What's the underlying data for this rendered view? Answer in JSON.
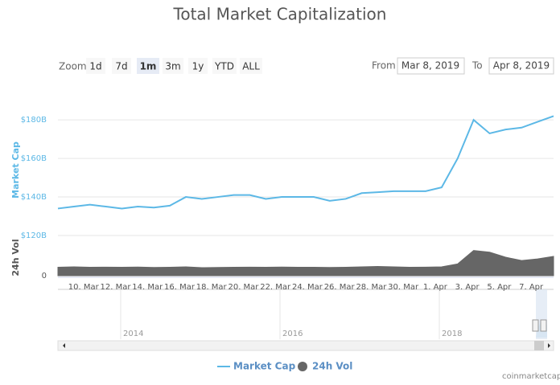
{
  "chart_data": [
    {
      "type": "line",
      "title": "Total Market Capitalization",
      "ylabel": "Market Cap",
      "series": [
        {
          "name": "Market Cap",
          "color": "#5cb8e6",
          "values": [
            134,
            135,
            136,
            135,
            134,
            135,
            134.5,
            135.5,
            140,
            139,
            140,
            141,
            141,
            139,
            140,
            140,
            140,
            138,
            139,
            142,
            142.5,
            143,
            143,
            143,
            145,
            160,
            180,
            173,
            175,
            176,
            179,
            182
          ]
        }
      ],
      "ylim": [
        120,
        188
      ],
      "yticks": [
        {
          "value": 120,
          "label": "$120B"
        },
        {
          "value": 140,
          "label": "$140B"
        },
        {
          "value": 160,
          "label": "$160B"
        },
        {
          "value": 180,
          "label": "$180B"
        }
      ],
      "grid": true
    },
    {
      "type": "area",
      "ylabel": "24h Vol",
      "categories": [
        null,
        null,
        "10. Mar",
        null,
        "12. Mar",
        null,
        "14. Mar",
        null,
        "16. Mar",
        null,
        "18. Mar",
        null,
        "20. Mar",
        null,
        "22. Mar",
        null,
        "24. Mar",
        null,
        "26. Mar",
        null,
        "28. Mar",
        null,
        "30. Mar",
        null,
        "1. Apr",
        null,
        "3. Apr",
        null,
        "5. Apr",
        null,
        "7. Apr",
        null
      ],
      "series": [
        {
          "name": "24h Vol",
          "color": "#666666",
          "values": [
            10,
            10.5,
            10,
            10.2,
            10,
            10.3,
            9.8,
            10,
            10.5,
            9.5,
            9.8,
            10,
            10.2,
            10,
            10.3,
            10,
            10,
            9.8,
            10,
            10.5,
            11,
            10.5,
            10,
            10.2,
            10.5,
            14,
            30,
            28,
            22,
            18,
            20,
            23
          ]
        }
      ],
      "ylim": [
        0,
        43
      ],
      "yticks": [
        0
      ]
    }
  ],
  "zoom": {
    "label": "Zoom",
    "buttons": [
      "1d",
      "7d",
      "1m",
      "3m",
      "1y",
      "YTD",
      "ALL"
    ],
    "selected": 2
  },
  "range": {
    "from_label": "From",
    "from": "Mar 8, 2019",
    "to_label": "To",
    "to": "Apr 8, 2019"
  },
  "navigator": {
    "labels": [
      "2014",
      "2016",
      "2018"
    ]
  },
  "credits": "coinmarketcap.com"
}
